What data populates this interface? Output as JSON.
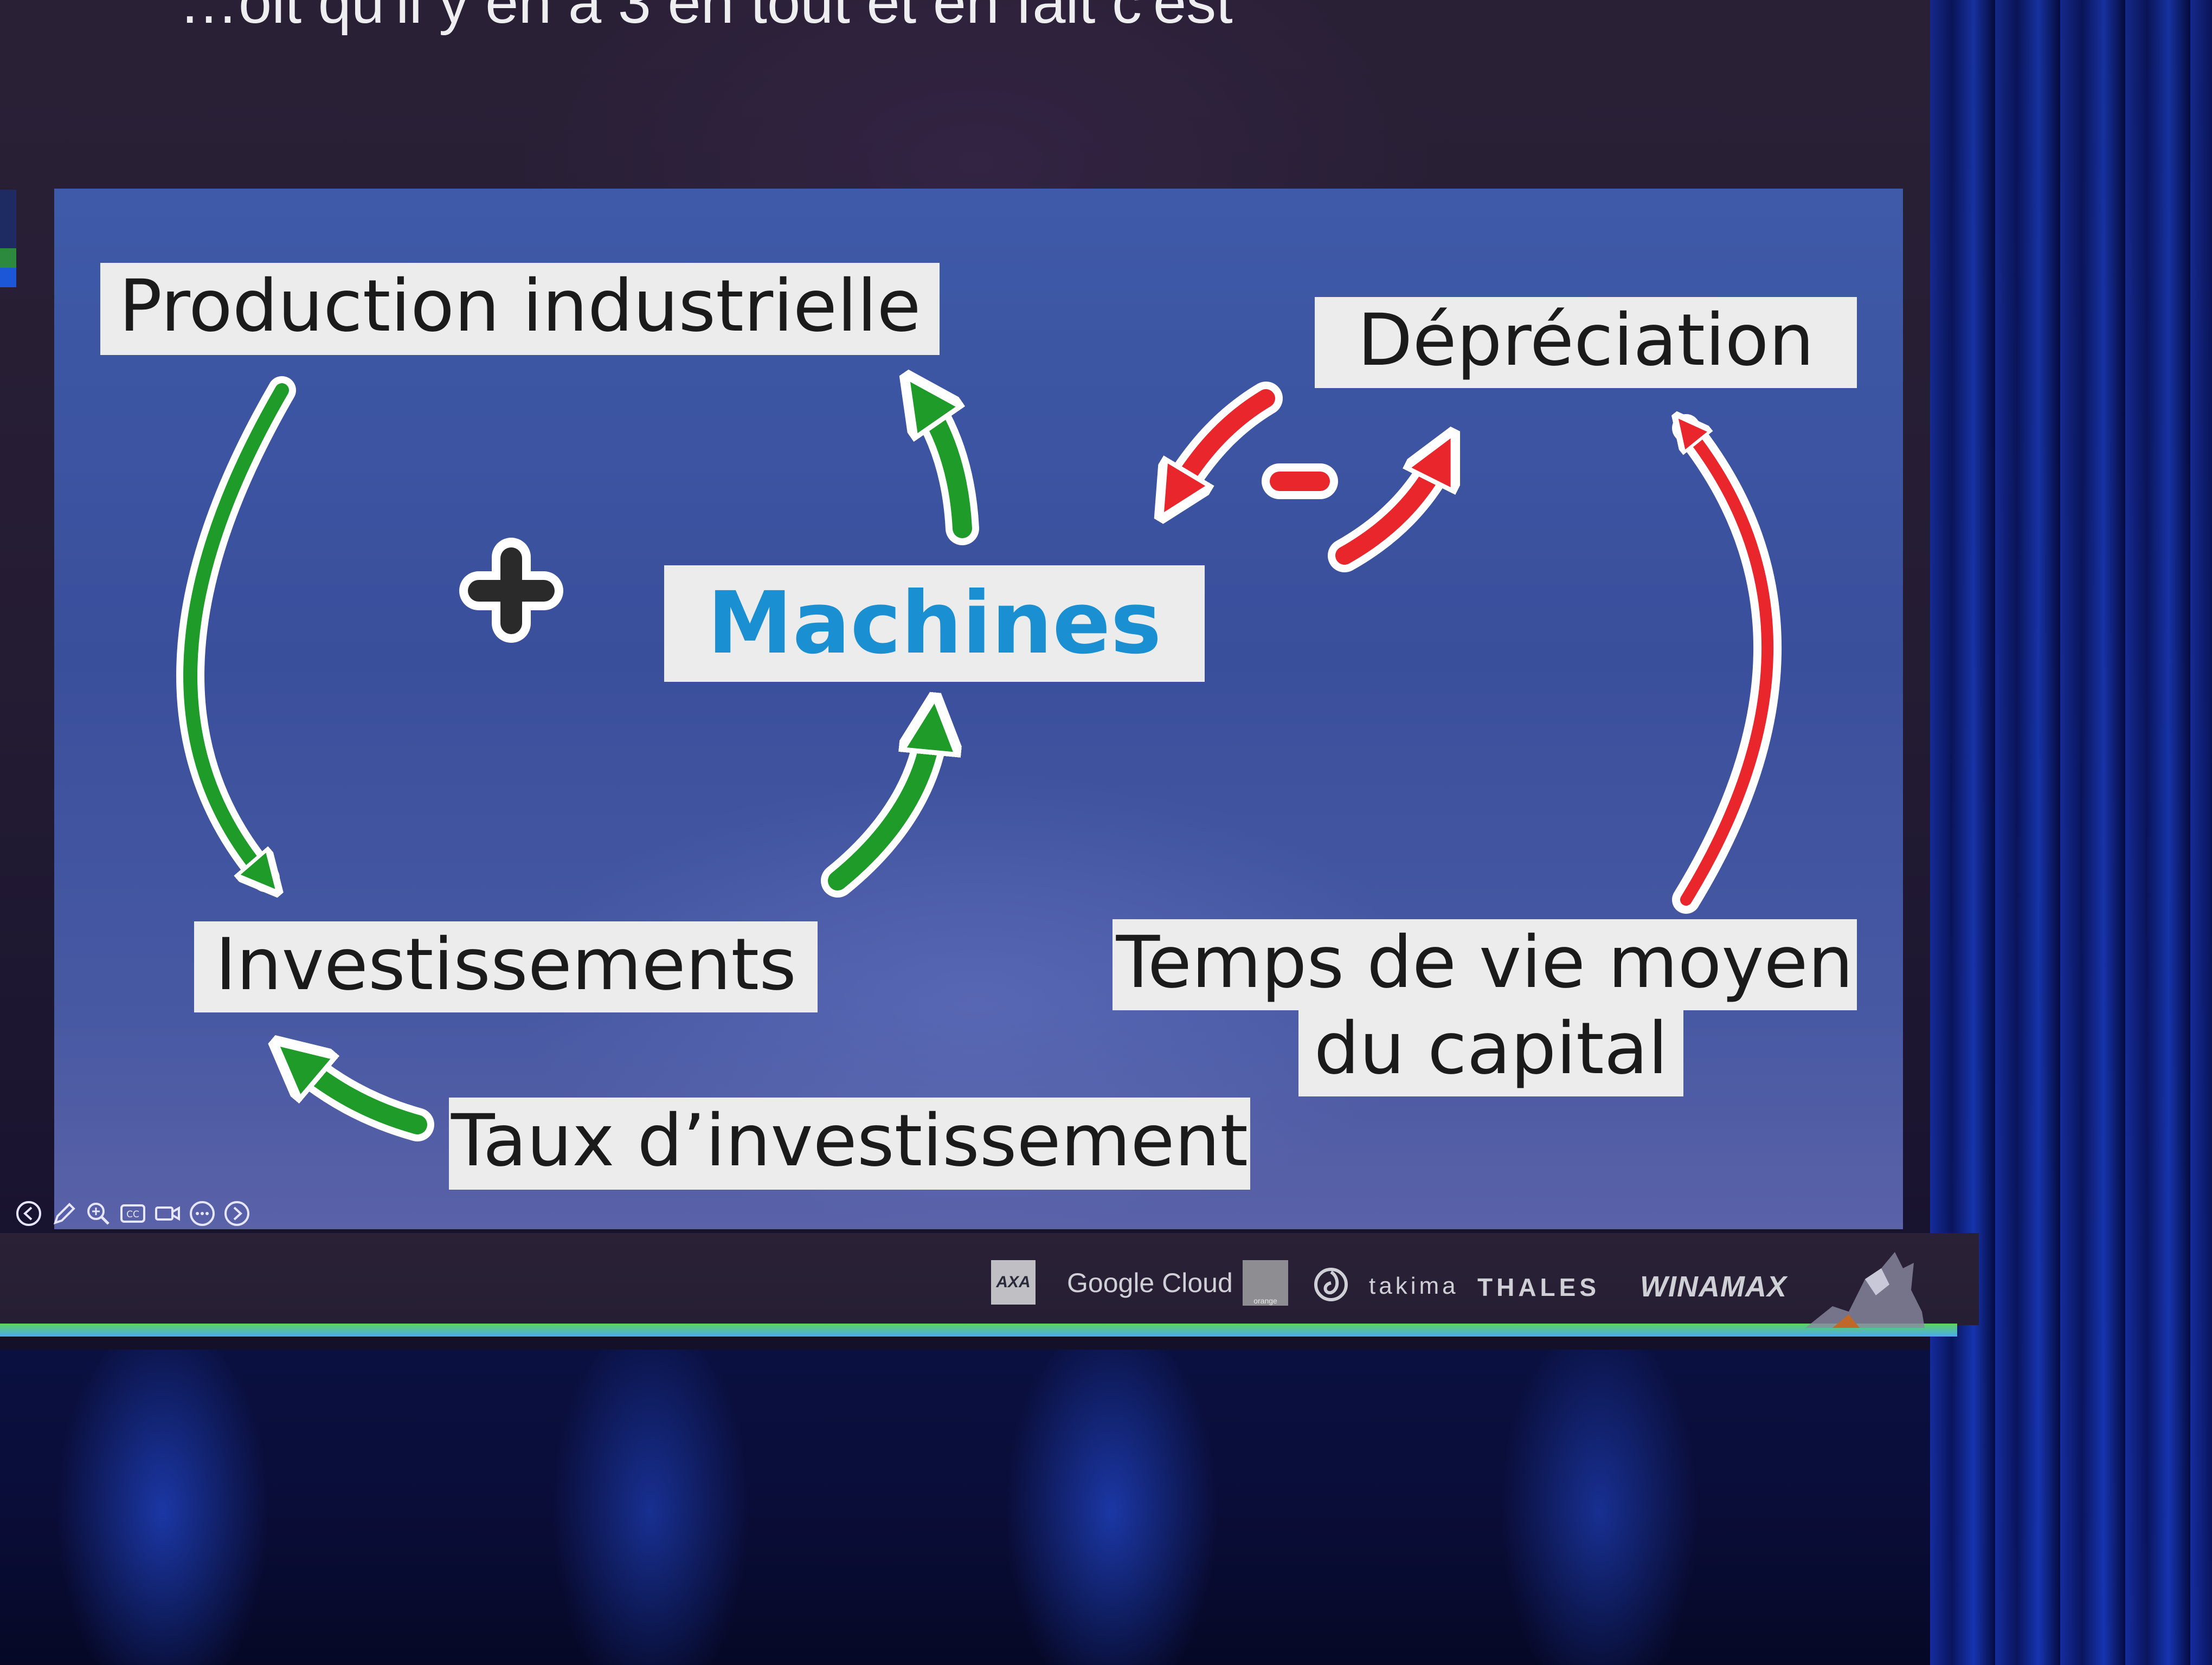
{
  "projected_caption": "…oit qu'il y en a 3 en tout et en fait c'est",
  "diagram": {
    "labels": {
      "production": "Production industrielle",
      "depreciation": "Dépréciation",
      "machines": "Machines",
      "investissements": "Investissements",
      "temps_line1": "Temps de vie moyen",
      "temps_line2": "du capital",
      "taux": "Taux d’investissement"
    },
    "signs": {
      "positive": "+",
      "negative": "-"
    },
    "colors": {
      "positive_arrow": "#1f9b2a",
      "negative_arrow": "#e8262c",
      "machines_text": "#1a8fd2",
      "label_bg": "#ececec",
      "slide_bg": "#3e5aa8"
    }
  },
  "toolbar": {
    "prev": "previous-slide-icon",
    "pen": "pen-icon",
    "zoom": "zoom-icon",
    "captions": "CC",
    "camera": "camera-icon",
    "more": "more-options-icon",
    "next": "next-slide-icon"
  },
  "sponsors": {
    "axa": "AXA",
    "google_cloud": "Google Cloud",
    "orange": "orange",
    "takima": "takima",
    "thales": "THALES",
    "winamax": "WINAMAX"
  }
}
